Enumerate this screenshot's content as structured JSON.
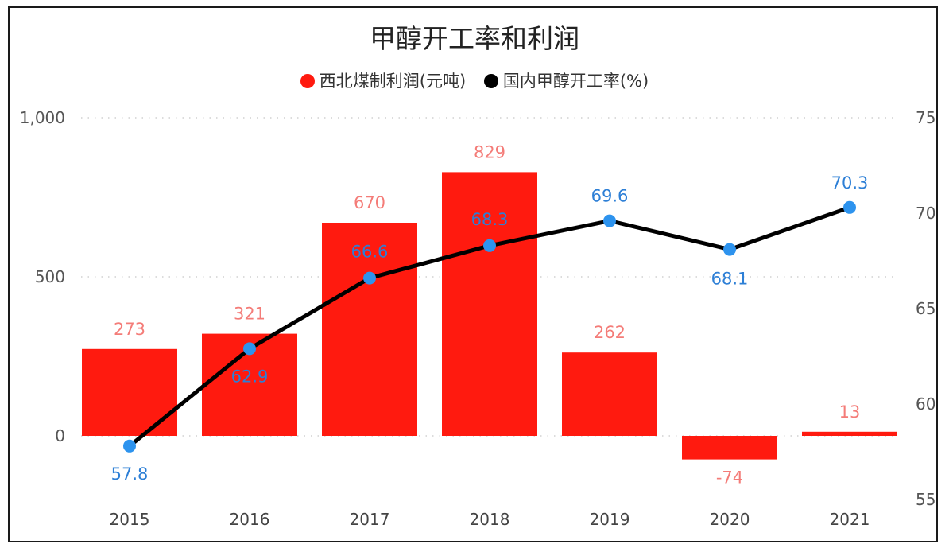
{
  "chart_data": {
    "type": "bar+line",
    "title": "甲醇开工率和利润",
    "categories": [
      "2015",
      "2016",
      "2017",
      "2018",
      "2019",
      "2020",
      "2021"
    ],
    "series": [
      {
        "name": "西北煤制利润(元吨)",
        "type": "bar",
        "axis": "left",
        "color": "#ff1a0f",
        "label_color": "#f47c78",
        "values": [
          273,
          321,
          670,
          829,
          262,
          -74,
          13
        ]
      },
      {
        "name": "国内甲醇开工率(%)",
        "type": "line",
        "axis": "right",
        "color": "#000000",
        "marker_color": "#2d93ee",
        "label_color": "#2d7fd6",
        "values": [
          57.8,
          62.9,
          66.6,
          68.3,
          69.6,
          68.1,
          70.3
        ]
      }
    ],
    "y_left": {
      "ylim": [
        -150,
        1000
      ],
      "ticks": [
        0,
        500,
        1000
      ],
      "tick_labels": [
        "0",
        "500",
        "1,000"
      ]
    },
    "y_right": {
      "ylim": [
        55,
        75
      ],
      "ticks": [
        55,
        60,
        65,
        70,
        75
      ],
      "tick_labels": [
        "55",
        "60",
        "65",
        "70",
        "75"
      ]
    },
    "grid": "dotted horizontal",
    "legend_position": "top-center"
  }
}
